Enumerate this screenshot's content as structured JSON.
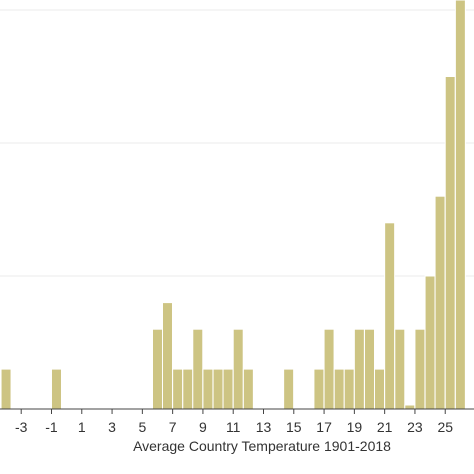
{
  "chart_data": {
    "type": "bar",
    "title": "",
    "xlabel": "Average Country Temperature 1901-2018",
    "ylabel": "",
    "grid": true,
    "bar_color": "#cdc483",
    "background": "#ffffff",
    "x_ticks": [
      "-3",
      "-1",
      "1",
      "3",
      "5",
      "7",
      "9",
      "11",
      "13",
      "15",
      "17",
      "19",
      "21",
      "23",
      "25"
    ],
    "x_tick_values": [
      -3,
      -1,
      1,
      3,
      5,
      7,
      9,
      11,
      13,
      15,
      17,
      19,
      21,
      23,
      25
    ],
    "xlim": [
      -4.4,
      26.9
    ],
    "ylim": [
      0,
      30
    ],
    "y_gridlines": [
      10,
      20,
      30
    ],
    "bin_width": 0.66,
    "bars": [
      {
        "x": -4.33,
        "y": 3
      },
      {
        "x": -1.0,
        "y": 3
      },
      {
        "x": 5.67,
        "y": 6
      },
      {
        "x": 6.33,
        "y": 8
      },
      {
        "x": 7.0,
        "y": 3
      },
      {
        "x": 7.67,
        "y": 3
      },
      {
        "x": 8.33,
        "y": 6
      },
      {
        "x": 9.0,
        "y": 3
      },
      {
        "x": 9.67,
        "y": 3
      },
      {
        "x": 10.33,
        "y": 3
      },
      {
        "x": 11.0,
        "y": 6
      },
      {
        "x": 11.67,
        "y": 3
      },
      {
        "x": 14.33,
        "y": 3
      },
      {
        "x": 16.33,
        "y": 3
      },
      {
        "x": 17.0,
        "y": 6
      },
      {
        "x": 17.67,
        "y": 3
      },
      {
        "x": 18.33,
        "y": 3
      },
      {
        "x": 19.0,
        "y": 6
      },
      {
        "x": 19.67,
        "y": 6
      },
      {
        "x": 20.33,
        "y": 3
      },
      {
        "x": 21.0,
        "y": 14
      },
      {
        "x": 21.67,
        "y": 6
      },
      {
        "x": 22.33,
        "y": 0.3
      },
      {
        "x": 23.0,
        "y": 6
      },
      {
        "x": 23.67,
        "y": 10
      },
      {
        "x": 24.33,
        "y": 16
      },
      {
        "x": 25.0,
        "y": 25
      },
      {
        "x": 25.67,
        "y": 32
      }
    ]
  }
}
